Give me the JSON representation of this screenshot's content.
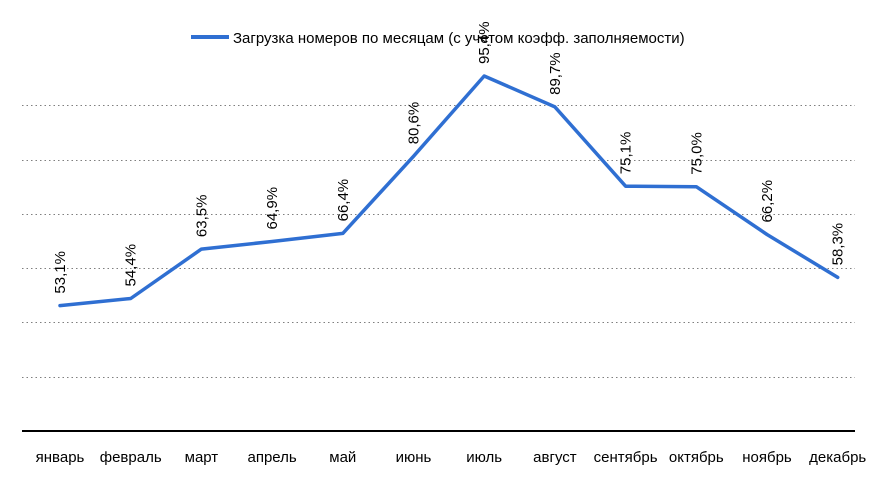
{
  "chart_data": {
    "type": "line",
    "categories": [
      "январь",
      "февраль",
      "март",
      "апрель",
      "май",
      "июнь",
      "июль",
      "август",
      "сентябрь",
      "октябрь",
      "ноябрь",
      "декабрь"
    ],
    "series": [
      {
        "name": "Загрузка номеров по месяцам (с учетом коэфф. заполняемости)",
        "values": [
          53.1,
          54.4,
          63.5,
          64.9,
          66.4,
          80.6,
          95.4,
          89.7,
          75.1,
          75.0,
          66.2,
          58.3
        ],
        "labels": [
          "53,1%",
          "54,4%",
          "63,5%",
          "64,9%",
          "66,4%",
          "80,6%",
          "95,4%",
          "89,7%",
          "75,1%",
          "75,0%",
          "66,2%",
          "58,3%"
        ],
        "color": "#2f6fd2"
      }
    ],
    "ylim": [
      30,
      100
    ],
    "grid": true,
    "legend_position": "top-center"
  }
}
